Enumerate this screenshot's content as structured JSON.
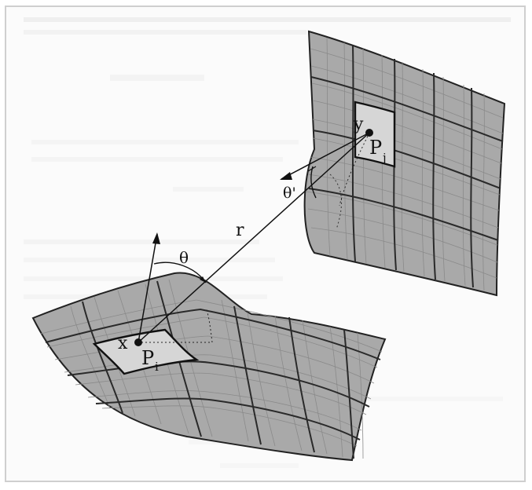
{
  "diagram": {
    "labels": {
      "point_x": "x",
      "patch_i": "P",
      "patch_i_sub": "i",
      "point_y": "y",
      "patch_j": "P",
      "patch_j_sub": "j",
      "distance": "r",
      "angle_i": "θ",
      "angle_j": "θ'"
    }
  },
  "colors": {
    "surface": "#a9a9a9",
    "grid_fine": "#8a8a8a",
    "grid_bold": "#2a2a2a",
    "patch": "#d6d6d6",
    "ink": "#111111"
  }
}
